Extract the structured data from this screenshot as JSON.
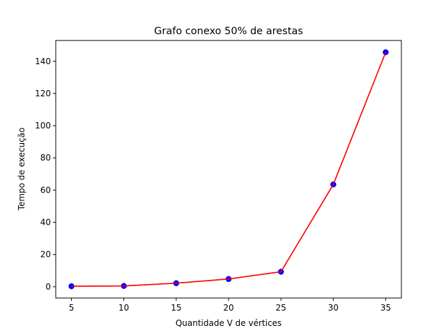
{
  "chart_data": {
    "type": "line",
    "title": "Grafo conexo 50% de arestas",
    "xlabel": "Quantidade V de vértices",
    "ylabel": "Tempo de execução",
    "x": [
      5,
      10,
      15,
      20,
      25,
      30,
      35
    ],
    "series": [
      {
        "values": [
          0.3,
          0.5,
          2.2,
          4.8,
          9.3,
          63.5,
          145.6
        ],
        "line_color": "#ff0000",
        "marker_color": "#0000ff"
      }
    ],
    "xticks": [
      5,
      10,
      15,
      20,
      25,
      30,
      35
    ],
    "yticks": [
      0,
      20,
      40,
      60,
      80,
      100,
      120,
      140
    ],
    "xlim": [
      3.5,
      36.5
    ],
    "ylim": [
      -7,
      152.9
    ],
    "grid": false,
    "legend": false
  }
}
